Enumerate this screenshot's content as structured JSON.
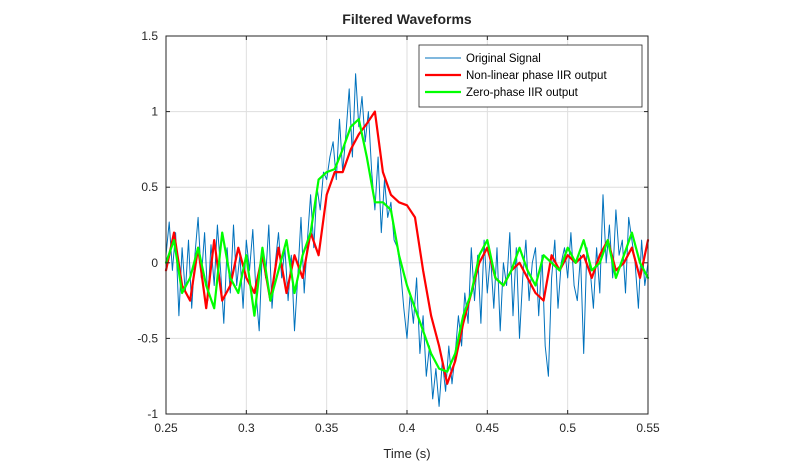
{
  "chart_data": {
    "type": "line",
    "title": "Filtered Waveforms",
    "xlabel": "Time (s)",
    "ylabel": "",
    "xlim": [
      0.25,
      0.55
    ],
    "ylim": [
      -1,
      1.5
    ],
    "xticks": [
      0.25,
      0.3,
      0.35,
      0.4,
      0.45,
      0.5,
      0.55
    ],
    "xtick_labels": [
      "0.25",
      "0.3",
      "0.35",
      "0.4",
      "0.45",
      "0.5",
      "0.55"
    ],
    "yticks": [
      -1,
      -0.5,
      0,
      0.5,
      1,
      1.5
    ],
    "ytick_labels": [
      "-1",
      "-0.5",
      "0",
      "0.5",
      "1",
      "1.5"
    ],
    "grid": true,
    "legend_position": "top-right",
    "series": [
      {
        "name": "Original Signal",
        "color": "#0072BD",
        "x": [
          0.25,
          0.252,
          0.254,
          0.256,
          0.258,
          0.26,
          0.262,
          0.264,
          0.266,
          0.268,
          0.27,
          0.272,
          0.274,
          0.276,
          0.278,
          0.28,
          0.282,
          0.284,
          0.286,
          0.288,
          0.29,
          0.292,
          0.294,
          0.296,
          0.298,
          0.3,
          0.302,
          0.304,
          0.306,
          0.308,
          0.31,
          0.312,
          0.314,
          0.316,
          0.318,
          0.32,
          0.322,
          0.324,
          0.326,
          0.328,
          0.33,
          0.332,
          0.334,
          0.336,
          0.338,
          0.34,
          0.342,
          0.344,
          0.346,
          0.348,
          0.35,
          0.352,
          0.354,
          0.356,
          0.358,
          0.36,
          0.362,
          0.364,
          0.366,
          0.368,
          0.37,
          0.372,
          0.374,
          0.376,
          0.378,
          0.38,
          0.382,
          0.384,
          0.386,
          0.388,
          0.39,
          0.392,
          0.394,
          0.396,
          0.398,
          0.4,
          0.402,
          0.404,
          0.406,
          0.408,
          0.41,
          0.412,
          0.414,
          0.416,
          0.418,
          0.42,
          0.422,
          0.424,
          0.426,
          0.428,
          0.43,
          0.432,
          0.434,
          0.436,
          0.438,
          0.44,
          0.442,
          0.444,
          0.446,
          0.448,
          0.45,
          0.452,
          0.454,
          0.456,
          0.458,
          0.46,
          0.462,
          0.464,
          0.466,
          0.468,
          0.47,
          0.472,
          0.474,
          0.476,
          0.478,
          0.48,
          0.482,
          0.484,
          0.486,
          0.488,
          0.49,
          0.492,
          0.494,
          0.496,
          0.498,
          0.5,
          0.502,
          0.504,
          0.506,
          0.508,
          0.51,
          0.512,
          0.514,
          0.516,
          0.518,
          0.52,
          0.522,
          0.524,
          0.526,
          0.528,
          0.53,
          0.532,
          0.534,
          0.536,
          0.538,
          0.54,
          0.542,
          0.544,
          0.546,
          0.548,
          0.55
        ],
        "values": [
          0.05,
          0.27,
          -0.05,
          0.2,
          -0.35,
          0.1,
          -0.2,
          0.15,
          -0.3,
          0.05,
          0.3,
          -0.1,
          0.2,
          -0.25,
          0.12,
          -0.15,
          0.25,
          -0.05,
          -0.4,
          0.1,
          -0.2,
          0.25,
          -0.15,
          0.05,
          -0.3,
          0.15,
          -0.05,
          0.22,
          -0.2,
          -0.45,
          0.1,
          -0.1,
          0.25,
          -0.3,
          0.0,
          0.2,
          -0.1,
          0.1,
          -0.25,
          0.05,
          -0.45,
          -0.1,
          0.3,
          -0.2,
          0.15,
          0.45,
          0.1,
          0.5,
          0.35,
          0.6,
          0.55,
          0.7,
          0.8,
          0.55,
          0.95,
          0.6,
          0.85,
          1.15,
          0.7,
          1.25,
          0.9,
          1.1,
          0.8,
          1.0,
          0.6,
          0.35,
          0.7,
          0.2,
          0.55,
          0.3,
          0.4,
          0.15,
          0.1,
          -0.05,
          -0.3,
          -0.5,
          -0.2,
          -0.4,
          -0.1,
          -0.6,
          -0.35,
          -0.75,
          -0.55,
          -0.9,
          -0.7,
          -0.95,
          -0.65,
          -0.85,
          -0.55,
          -0.8,
          -0.6,
          -0.35,
          -0.55,
          -0.2,
          -0.4,
          0.1,
          -0.25,
          0.05,
          -0.4,
          0.15,
          -0.2,
          0.05,
          -0.3,
          0.1,
          -0.45,
          0.0,
          -0.15,
          0.2,
          -0.35,
          0.1,
          -0.5,
          -0.1,
          0.15,
          -0.25,
          0.0,
          0.1,
          -0.35,
          0.05,
          -0.55,
          -0.75,
          -0.1,
          0.15,
          -0.3,
          0.0,
          0.1,
          -0.1,
          0.2,
          -0.15,
          -0.25,
          0.05,
          -0.6,
          0.1,
          -0.05,
          -0.3,
          0.1,
          -0.2,
          0.45,
          0.0,
          0.25,
          -0.1,
          0.35,
          0.05,
          0.15,
          -0.2,
          0.3,
          0.15,
          0.0,
          -0.3,
          0.15,
          -0.15,
          0.0
        ]
      },
      {
        "name": "Non-linear phase IIR output",
        "color": "#FF0000",
        "x": [
          0.25,
          0.255,
          0.26,
          0.265,
          0.27,
          0.275,
          0.28,
          0.285,
          0.29,
          0.295,
          0.3,
          0.305,
          0.31,
          0.315,
          0.32,
          0.325,
          0.33,
          0.335,
          0.34,
          0.345,
          0.35,
          0.355,
          0.36,
          0.365,
          0.37,
          0.375,
          0.38,
          0.385,
          0.39,
          0.395,
          0.4,
          0.405,
          0.41,
          0.415,
          0.42,
          0.425,
          0.43,
          0.435,
          0.44,
          0.445,
          0.45,
          0.455,
          0.46,
          0.465,
          0.47,
          0.475,
          0.48,
          0.485,
          0.49,
          0.495,
          0.5,
          0.505,
          0.51,
          0.515,
          0.52,
          0.525,
          0.53,
          0.535,
          0.54,
          0.545,
          0.55
        ],
        "values": [
          -0.05,
          0.2,
          -0.15,
          -0.25,
          0.1,
          -0.3,
          0.15,
          -0.25,
          -0.15,
          0.1,
          -0.1,
          -0.2,
          0.05,
          -0.25,
          0.1,
          -0.2,
          0.05,
          -0.1,
          0.2,
          0.05,
          0.45,
          0.6,
          0.6,
          0.75,
          0.85,
          0.92,
          1.0,
          0.6,
          0.45,
          0.4,
          0.38,
          0.3,
          -0.05,
          -0.35,
          -0.55,
          -0.8,
          -0.65,
          -0.4,
          -0.2,
          0.0,
          0.1,
          -0.1,
          -0.15,
          -0.05,
          0.0,
          -0.1,
          -0.2,
          -0.25,
          0.05,
          -0.05,
          0.05,
          0.0,
          0.05,
          -0.1,
          0.05,
          0.15,
          -0.05,
          0.0,
          0.1,
          -0.1,
          0.15
        ]
      },
      {
        "name": "Zero-phase IIR output",
        "color": "#00FF00",
        "x": [
          0.25,
          0.255,
          0.26,
          0.265,
          0.27,
          0.275,
          0.28,
          0.285,
          0.29,
          0.295,
          0.3,
          0.305,
          0.31,
          0.315,
          0.32,
          0.325,
          0.33,
          0.335,
          0.34,
          0.345,
          0.35,
          0.355,
          0.36,
          0.365,
          0.37,
          0.375,
          0.38,
          0.385,
          0.39,
          0.395,
          0.4,
          0.405,
          0.41,
          0.415,
          0.42,
          0.425,
          0.43,
          0.435,
          0.44,
          0.445,
          0.45,
          0.455,
          0.46,
          0.465,
          0.47,
          0.475,
          0.48,
          0.485,
          0.49,
          0.495,
          0.5,
          0.505,
          0.51,
          0.515,
          0.52,
          0.525,
          0.53,
          0.535,
          0.54,
          0.545,
          0.55
        ],
        "values": [
          0.0,
          0.15,
          -0.2,
          -0.1,
          0.1,
          -0.15,
          -0.3,
          0.2,
          -0.1,
          -0.2,
          0.05,
          -0.35,
          0.1,
          -0.25,
          -0.05,
          0.15,
          -0.2,
          0.05,
          0.2,
          0.55,
          0.6,
          0.62,
          0.75,
          0.9,
          0.95,
          0.7,
          0.4,
          0.4,
          0.35,
          0.05,
          -0.15,
          -0.3,
          -0.45,
          -0.6,
          -0.7,
          -0.72,
          -0.6,
          -0.35,
          -0.2,
          0.05,
          0.15,
          -0.1,
          -0.15,
          -0.05,
          0.1,
          -0.05,
          -0.15,
          0.05,
          0.0,
          -0.05,
          0.1,
          0.0,
          0.15,
          -0.05,
          0.0,
          0.15,
          -0.1,
          0.05,
          0.2,
          0.0,
          -0.1
        ]
      }
    ]
  }
}
